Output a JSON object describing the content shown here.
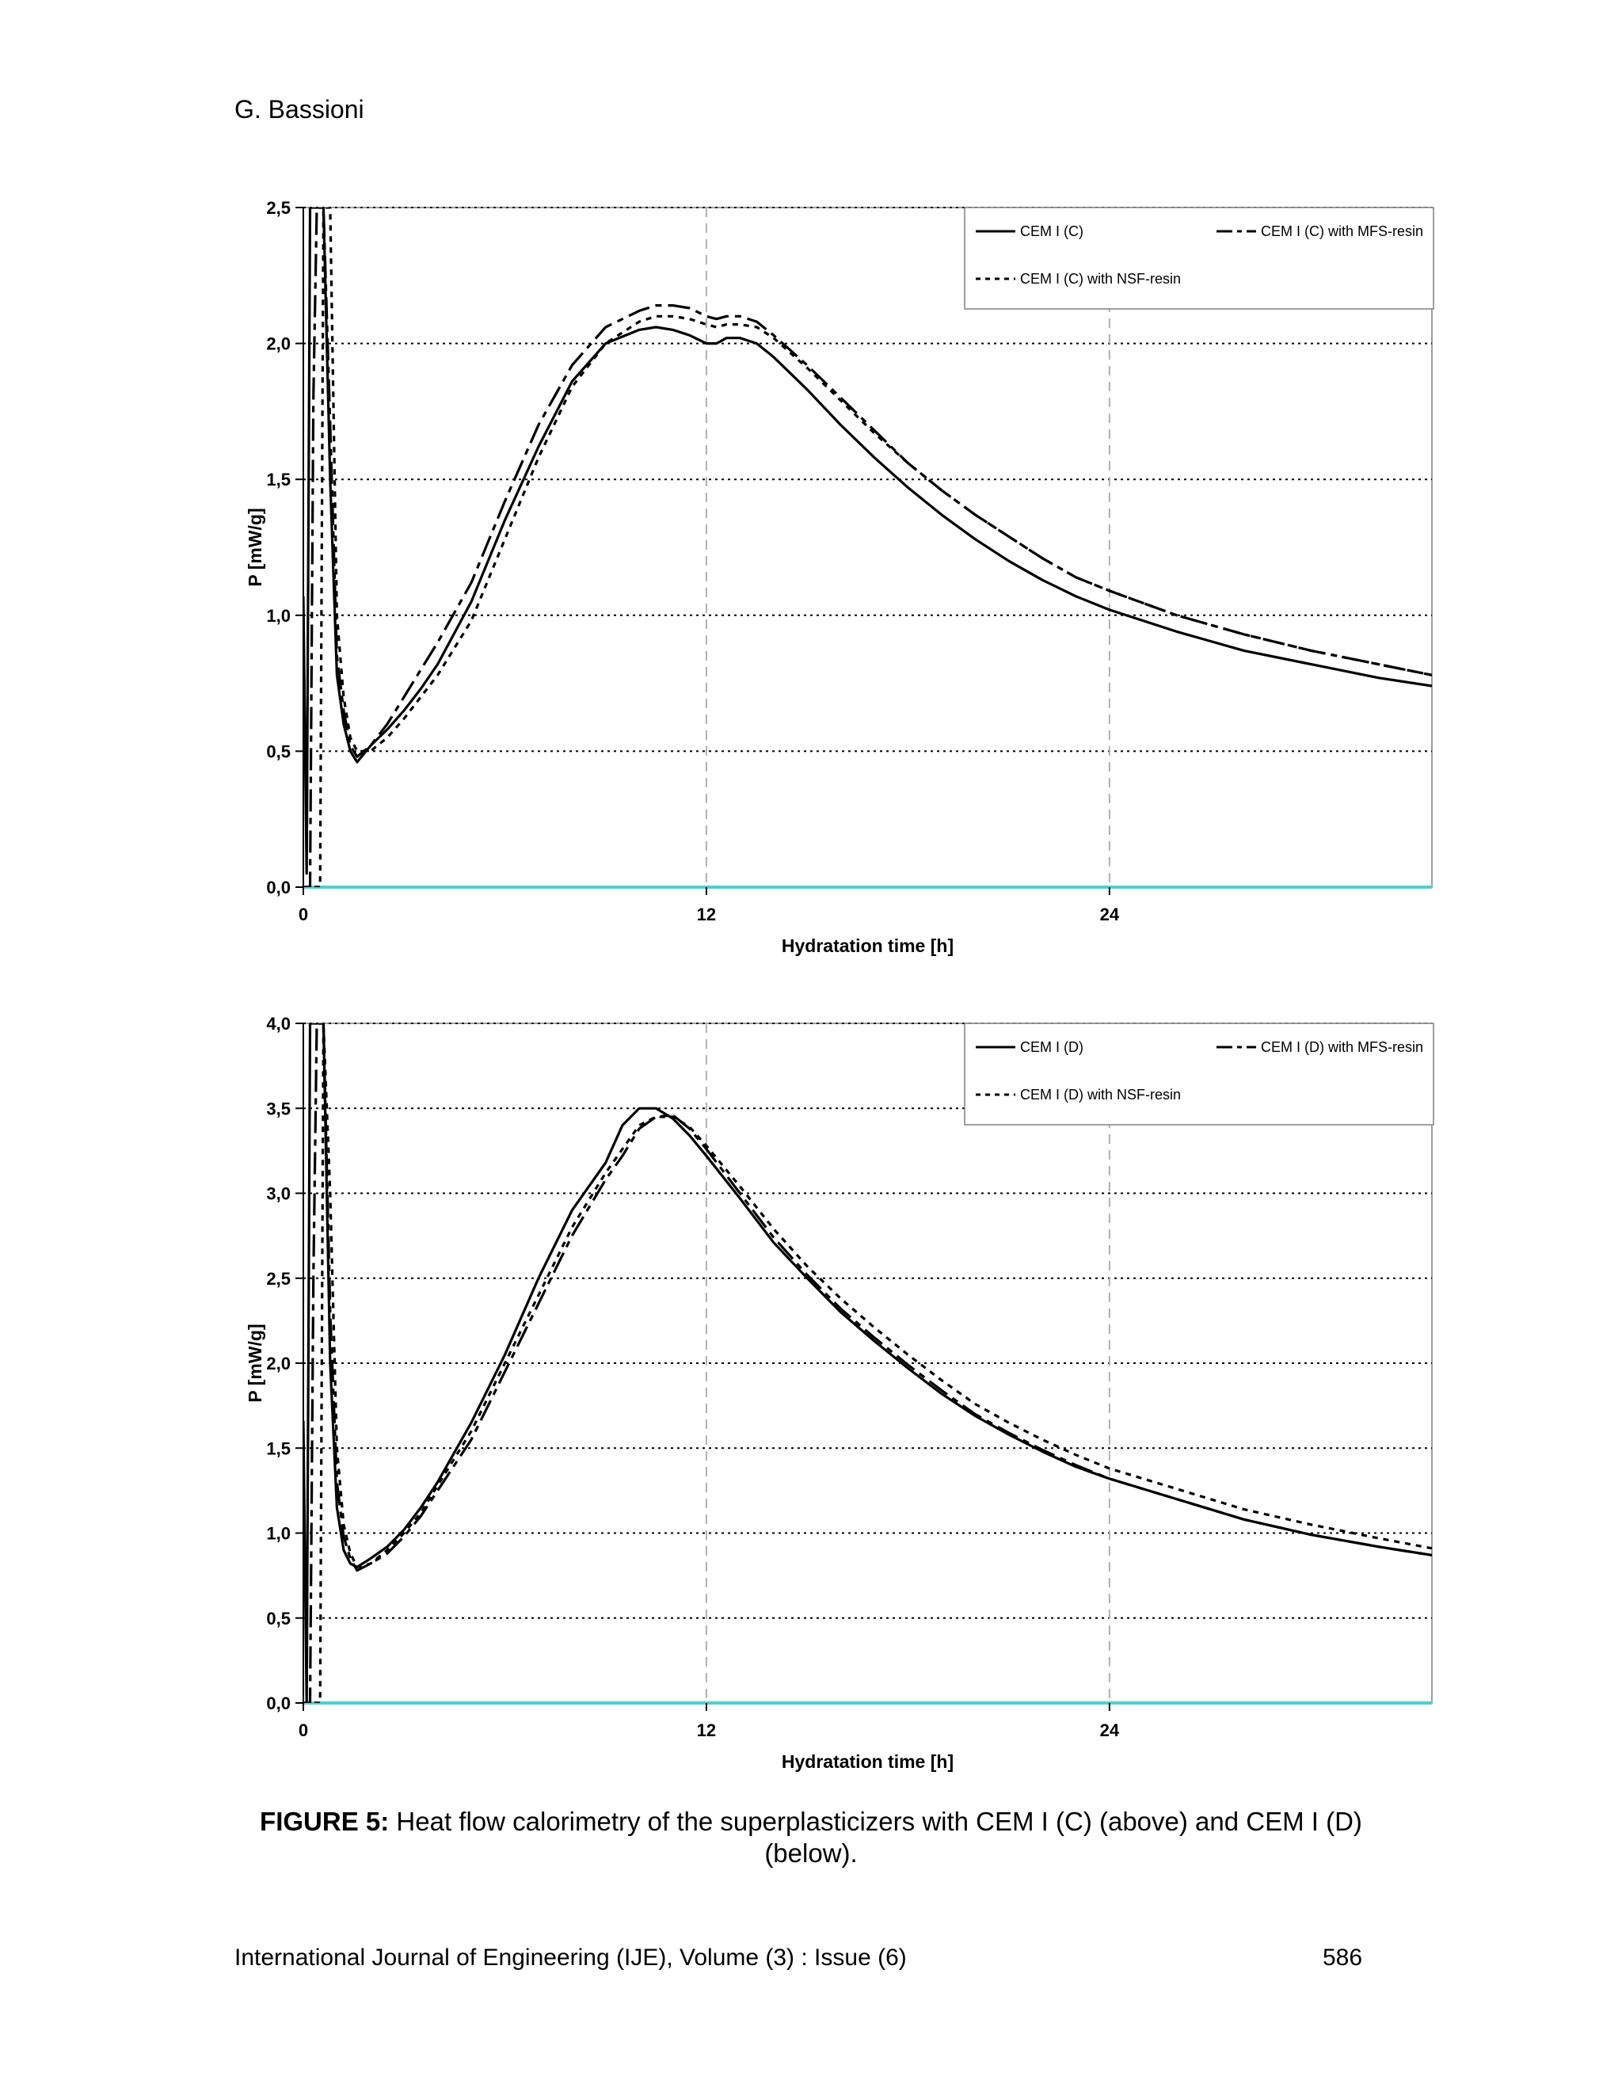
{
  "header": {
    "author": "G. Bassioni"
  },
  "caption": {
    "label": "FIGURE 5:",
    "text": "Heat flow calorimetry of the superplasticizers with CEM I (C) (above) and CEM I (D) (below)."
  },
  "footer": {
    "journal": "International Journal of Engineering (IJE), Volume (3) : Issue (6)",
    "page": "586"
  },
  "chart_data": [
    {
      "type": "line",
      "xlabel": "Hydratation time [h]",
      "ylabel": "P [mW/g]",
      "xlim": [
        0,
        33.6
      ],
      "ylim": [
        0,
        2.5
      ],
      "x_ticks": [
        "0",
        "12",
        "24"
      ],
      "x_tick_values": [
        0,
        12,
        24
      ],
      "y_ticks": [
        "0,0",
        "0,5",
        "1,0",
        "1,5",
        "2,0",
        "2,5"
      ],
      "y_tick_values": [
        0,
        0.5,
        1.0,
        1.5,
        2.0,
        2.5
      ],
      "grid": "horizontal dotted, vertical dashed",
      "legend_placement": "top-right",
      "series": [
        {
          "name": "CEM I (C)",
          "style": "solid",
          "x": [
            0.0,
            0.1,
            0.2,
            0.3,
            0.4,
            0.5,
            0.6,
            0.8,
            1.0,
            1.2,
            1.4,
            1.6,
            2.0,
            2.5,
            3.0,
            3.5,
            4.0,
            5.0,
            6.0,
            7.0,
            8.0,
            9.0,
            10.0,
            10.5,
            11.0,
            11.5,
            12.0,
            12.3,
            12.6,
            13.0,
            13.5,
            14.0,
            15.0,
            16.0,
            17.0,
            18.0,
            19.0,
            20.0,
            21.0,
            22.0,
            23.0,
            24.0,
            26.0,
            28.0,
            30.0,
            32.0,
            33.6
          ],
          "y": [
            1.07,
            0.05,
            2.5,
            2.5,
            2.5,
            2.5,
            2.5,
            1.5,
            0.78,
            0.6,
            0.5,
            0.46,
            0.52,
            0.58,
            0.65,
            0.73,
            0.82,
            1.05,
            1.35,
            1.62,
            1.86,
            2.0,
            2.05,
            2.06,
            2.05,
            2.03,
            2.0,
            2.0,
            2.02,
            2.02,
            2.0,
            1.95,
            1.83,
            1.7,
            1.58,
            1.47,
            1.37,
            1.28,
            1.2,
            1.13,
            1.07,
            1.02,
            0.94,
            0.87,
            0.82,
            0.77,
            0.74
          ]
        },
        {
          "name": "CEM I (C) with MFS-resin",
          "style": "dash",
          "x": [
            0.0,
            0.1,
            0.2,
            0.3,
            0.4,
            0.5,
            0.6,
            0.8,
            1.0,
            1.2,
            1.4,
            1.6,
            2.0,
            2.5,
            3.0,
            3.5,
            4.0,
            5.0,
            6.0,
            7.0,
            8.0,
            9.0,
            10.0,
            10.5,
            11.0,
            11.5,
            12.0,
            12.3,
            12.6,
            13.0,
            13.5,
            14.0,
            15.0,
            16.0,
            17.0,
            18.0,
            19.0,
            20.0,
            21.0,
            22.0,
            23.0,
            24.0,
            26.0,
            28.0,
            30.0,
            32.0,
            33.6
          ],
          "y": [
            0.0,
            0.0,
            0.0,
            1.8,
            2.5,
            2.5,
            2.5,
            1.7,
            0.85,
            0.65,
            0.52,
            0.48,
            0.52,
            0.6,
            0.7,
            0.8,
            0.9,
            1.12,
            1.42,
            1.7,
            1.92,
            2.06,
            2.12,
            2.14,
            2.14,
            2.13,
            2.1,
            2.09,
            2.1,
            2.1,
            2.08,
            2.03,
            1.92,
            1.8,
            1.68,
            1.56,
            1.46,
            1.37,
            1.29,
            1.21,
            1.14,
            1.09,
            1.0,
            0.93,
            0.87,
            0.82,
            0.78
          ]
        },
        {
          "name": "CEM I (C) with NSF-resin",
          "style": "dot",
          "x": [
            0.0,
            0.1,
            0.2,
            0.3,
            0.4,
            0.5,
            0.6,
            0.8,
            1.0,
            1.2,
            1.4,
            1.6,
            2.0,
            2.5,
            3.0,
            3.5,
            4.0,
            5.0,
            6.0,
            7.0,
            8.0,
            9.0,
            10.0,
            10.5,
            11.0,
            11.5,
            12.0,
            12.3,
            12.6,
            13.0,
            13.5,
            14.0,
            15.0,
            16.0,
            17.0,
            18.0,
            19.0,
            20.0,
            21.0,
            22.0,
            23.0,
            24.0,
            26.0,
            28.0,
            30.0,
            32.0,
            33.6
          ],
          "y": [
            0.0,
            0.0,
            0.0,
            0.0,
            0.0,
            0.0,
            2.5,
            2.5,
            1.0,
            0.7,
            0.55,
            0.5,
            0.5,
            0.55,
            0.62,
            0.7,
            0.78,
            0.98,
            1.28,
            1.58,
            1.84,
            2.0,
            2.08,
            2.1,
            2.1,
            2.09,
            2.07,
            2.06,
            2.07,
            2.07,
            2.06,
            2.02,
            1.91,
            1.79,
            1.67,
            1.56,
            1.46,
            1.37,
            1.29,
            1.21,
            1.14,
            1.09,
            1.0,
            0.93,
            0.87,
            0.82,
            0.78
          ]
        }
      ]
    },
    {
      "type": "line",
      "xlabel": "Hydratation time [h]",
      "ylabel": "P [mW/g]",
      "xlim": [
        0,
        33.6
      ],
      "ylim": [
        0,
        4.0
      ],
      "x_ticks": [
        "0",
        "12",
        "24"
      ],
      "x_tick_values": [
        0,
        12,
        24
      ],
      "y_ticks": [
        "0,0",
        "0,5",
        "1,0",
        "1,5",
        "2,0",
        "2,5",
        "3,0",
        "3,5",
        "4,0"
      ],
      "y_tick_values": [
        0,
        0.5,
        1.0,
        1.5,
        2.0,
        2.5,
        3.0,
        3.5,
        4.0
      ],
      "grid": "horizontal dotted, vertical dashed",
      "legend_placement": "top-right",
      "series": [
        {
          "name": "CEM I (D)",
          "style": "solid",
          "x": [
            0.0,
            0.1,
            0.2,
            0.3,
            0.4,
            0.5,
            0.6,
            0.8,
            1.0,
            1.2,
            1.4,
            1.6,
            2.0,
            2.5,
            3.0,
            3.5,
            4.0,
            5.0,
            6.0,
            7.0,
            8.0,
            9.0,
            9.5,
            10.0,
            10.5,
            11.0,
            11.5,
            12.0,
            13.0,
            14.0,
            15.0,
            16.0,
            17.0,
            18.0,
            19.0,
            20.0,
            21.0,
            22.0,
            23.0,
            24.0,
            26.0,
            28.0,
            30.0,
            32.0,
            33.6
          ],
          "y": [
            1.66,
            0.0,
            4.0,
            4.0,
            4.0,
            4.0,
            4.0,
            2.0,
            1.15,
            0.9,
            0.82,
            0.8,
            0.85,
            0.92,
            1.02,
            1.15,
            1.3,
            1.65,
            2.05,
            2.5,
            2.9,
            3.18,
            3.4,
            3.5,
            3.5,
            3.44,
            3.34,
            3.22,
            2.97,
            2.71,
            2.5,
            2.3,
            2.13,
            1.97,
            1.82,
            1.69,
            1.58,
            1.48,
            1.39,
            1.32,
            1.2,
            1.08,
            0.99,
            0.92,
            0.87
          ]
        },
        {
          "name": "CEM I (D) with MFS-resin",
          "style": "dash",
          "x": [
            0.0,
            0.1,
            0.2,
            0.3,
            0.4,
            0.5,
            0.6,
            0.8,
            1.0,
            1.2,
            1.4,
            1.6,
            2.0,
            2.5,
            3.0,
            3.5,
            4.0,
            5.0,
            6.0,
            7.0,
            8.0,
            9.0,
            9.5,
            10.0,
            10.5,
            11.0,
            11.5,
            12.0,
            13.0,
            14.0,
            15.0,
            16.0,
            17.0,
            18.0,
            19.0,
            20.0,
            21.0,
            22.0,
            23.0,
            24.0,
            26.0,
            28.0,
            30.0,
            32.0,
            33.6
          ],
          "y": [
            0.0,
            0.0,
            0.0,
            2.5,
            4.0,
            4.0,
            4.0,
            2.3,
            1.3,
            0.98,
            0.85,
            0.78,
            0.82,
            0.88,
            0.98,
            1.1,
            1.25,
            1.55,
            1.95,
            2.35,
            2.75,
            3.08,
            3.22,
            3.38,
            3.45,
            3.46,
            3.38,
            3.26,
            3.0,
            2.74,
            2.52,
            2.32,
            2.15,
            1.99,
            1.84,
            1.7,
            1.59,
            1.49,
            1.4,
            1.32,
            1.2,
            1.08,
            0.99,
            0.92,
            0.87
          ]
        },
        {
          "name": "CEM I (D) with NSF-resin",
          "style": "dot",
          "x": [
            0.0,
            0.1,
            0.2,
            0.3,
            0.4,
            0.5,
            0.6,
            0.8,
            1.0,
            1.2,
            1.4,
            1.6,
            2.0,
            2.5,
            3.0,
            3.5,
            4.0,
            5.0,
            6.0,
            7.0,
            8.0,
            9.0,
            9.5,
            10.0,
            10.5,
            11.0,
            11.5,
            12.0,
            13.0,
            14.0,
            15.0,
            16.0,
            17.0,
            18.0,
            19.0,
            20.0,
            21.0,
            22.0,
            23.0,
            24.0,
            26.0,
            28.0,
            30.0,
            32.0,
            33.6
          ],
          "y": [
            0.0,
            0.0,
            0.0,
            0.0,
            0.0,
            0.0,
            4.0,
            3.0,
            1.5,
            1.05,
            0.88,
            0.8,
            0.82,
            0.9,
            1.0,
            1.12,
            1.28,
            1.6,
            2.0,
            2.4,
            2.8,
            3.12,
            3.26,
            3.4,
            3.45,
            3.45,
            3.39,
            3.28,
            3.04,
            2.79,
            2.57,
            2.38,
            2.21,
            2.05,
            1.9,
            1.76,
            1.65,
            1.55,
            1.46,
            1.38,
            1.26,
            1.14,
            1.05,
            0.97,
            0.91
          ]
        }
      ]
    }
  ]
}
